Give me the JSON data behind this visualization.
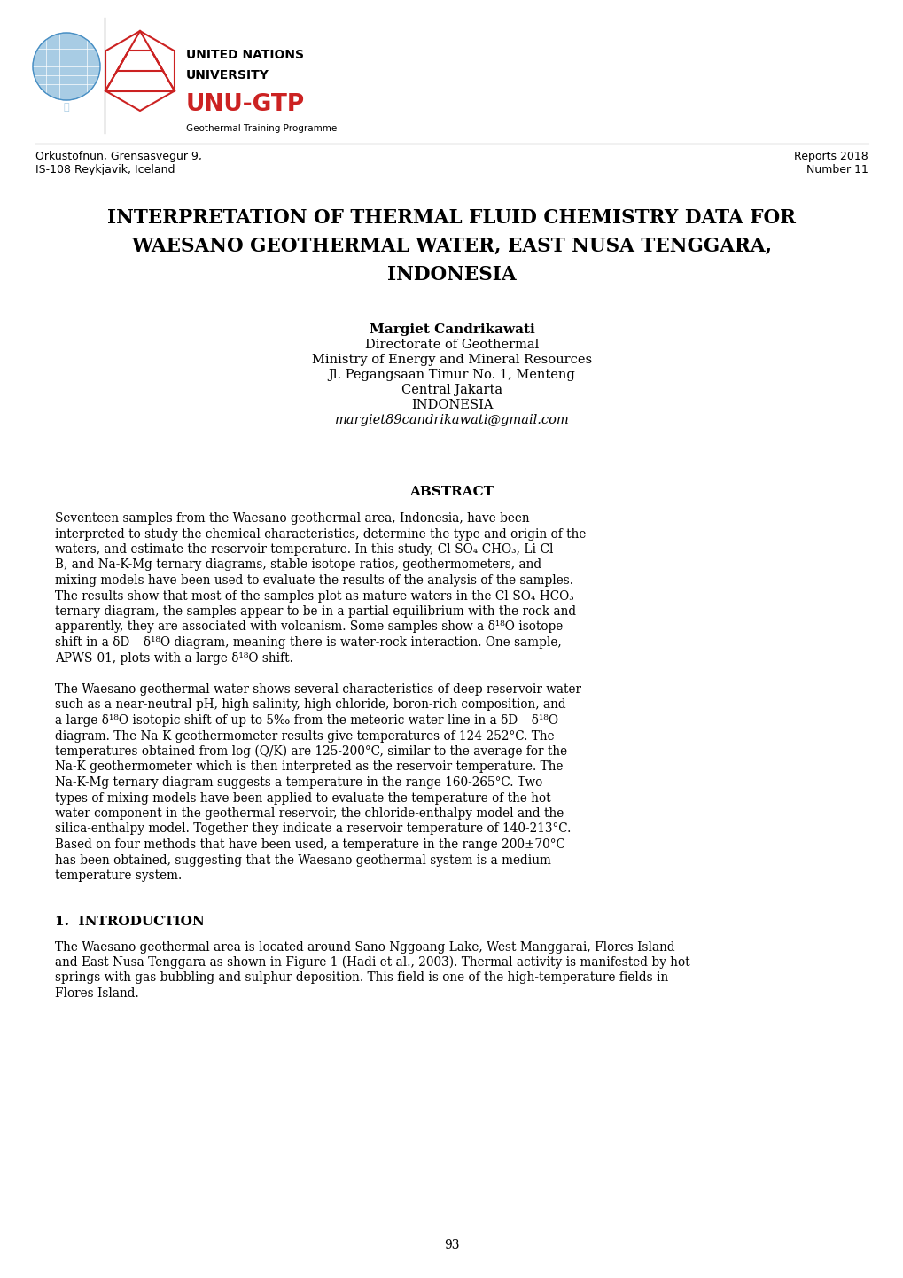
{
  "bg_color": "#ffffff",
  "header_left_line1": "Orkustofnun, Grensasvegur 9,",
  "header_left_line2": "IS-108 Reykjavik, Iceland",
  "header_right_line1": "Reports 2018",
  "header_right_line2": "Number 11",
  "main_title_line1": "INTERPRETATION OF THERMAL FLUID CHEMISTRY DATA FOR",
  "main_title_line2": "WAESANO GEOTHERMAL WATER, EAST NUSA TENGGARA,",
  "main_title_line3": "INDONESIA",
  "author_name": "Margiet Candrikawati",
  "author_affil1": "Directorate of Geothermal",
  "author_affil2": "Ministry of Energy and Mineral Resources",
  "author_affil3": "Jl. Pegangsaan Timur No. 1, Menteng",
  "author_affil4": "Central Jakarta",
  "author_affil5": "INDONESIA",
  "author_email": "margiet89candrikawati@gmail.com",
  "abstract_title": "ABSTRACT",
  "abstract_para1_lines": [
    "Seventeen samples from the Waesano geothermal area, Indonesia, have been",
    "interpreted to study the chemical characteristics, determine the type and origin of the",
    "waters, and estimate the reservoir temperature. In this study, Cl-SO₄-CHO₃, Li-Cl-",
    "B, and Na-K-Mg ternary diagrams, stable isotope ratios, geothermometers, and",
    "mixing models have been used to evaluate the results of the analysis of the samples.",
    "The results show that most of the samples plot as mature waters in the Cl-SO₄-HCO₃",
    "ternary diagram, the samples appear to be in a partial equilibrium with the rock and",
    "apparently, they are associated with volcanism. Some samples show a δ¹⁸O isotope",
    "shift in a δD – δ¹⁸O diagram, meaning there is water-rock interaction. One sample,",
    "APWS-01, plots with a large δ¹⁸O shift."
  ],
  "abstract_para2_lines": [
    "The Waesano geothermal water shows several characteristics of deep reservoir water",
    "such as a near-neutral pH, high salinity, high chloride, boron-rich composition, and",
    "a large δ¹⁸O isotopic shift of up to 5‰ from the meteoric water line in a δD – δ¹⁸O",
    "diagram. The Na-K geothermometer results give temperatures of 124-252°C. The",
    "temperatures obtained from log (Q/K) are 125-200°C, similar to the average for the",
    "Na-K geothermometer which is then interpreted as the reservoir temperature. The",
    "Na-K-Mg ternary diagram suggests a temperature in the range 160-265°C. Two",
    "types of mixing models have been applied to evaluate the temperature of the hot",
    "water component in the geothermal reservoir, the chloride-enthalpy model and the",
    "silica-enthalpy model. Together they indicate a reservoir temperature of 140-213°C.",
    "Based on four methods that have been used, a temperature in the range 200±70°C",
    "has been obtained, suggesting that the Waesano geothermal system is a medium",
    "temperature system."
  ],
  "intro_title": "1.  INTRODUCTION",
  "intro_para_lines": [
    "The Waesano geothermal area is located around Sano Nggoang Lake, West Manggarai, Flores Island",
    "and East Nusa Tenggara as shown in Figure 1 (Hadi et al., 2003). Thermal activity is manifested by hot",
    "springs with gas bubbling and sulphur deposition. This field is one of the high-temperature fields in",
    "Flores Island."
  ],
  "page_number": "93"
}
